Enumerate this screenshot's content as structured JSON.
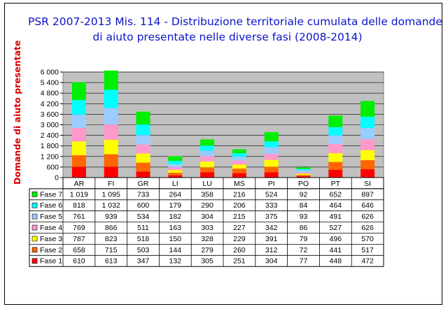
{
  "title_line1": "PSR 2007-2013 Mis. 114 - Distribuzione territoriale cumulata delle domande",
  "title_line2": "di aiuto presentate nelle diverse fasi (2008-2014)",
  "chart_data": {
    "type": "bar",
    "stacked": true,
    "title": "PSR 2007-2013 Mis. 114 - Distribuzione territoriale cumulata delle domande di aiuto presentate nelle diverse fasi (2008-2014)",
    "ylabel": "Domande di aiuto presentate",
    "xlabel": "",
    "ylim": [
      0,
      6000
    ],
    "yticks": [
      "0",
      "600",
      "1 200",
      "1 800",
      "2 400",
      "3 000",
      "3 600",
      "4 200",
      "4 800",
      "5 400",
      "6 000"
    ],
    "grid": true,
    "legend": "data-table-left",
    "categories": [
      "AR",
      "FI",
      "GR",
      "LI",
      "LU",
      "MS",
      "PI",
      "PO",
      "PT",
      "SI"
    ],
    "series": [
      {
        "name": "Fase 1",
        "color": "#ff0000",
        "values": [
          610,
          613,
          347,
          132,
          305,
          251,
          304,
          77,
          448,
          472
        ]
      },
      {
        "name": "Fase 2",
        "color": "#ff6600",
        "values": [
          658,
          715,
          503,
          144,
          279,
          260,
          312,
          72,
          441,
          517
        ]
      },
      {
        "name": "Fase 3",
        "color": "#ffff00",
        "values": [
          787,
          823,
          518,
          150,
          328,
          229,
          391,
          79,
          496,
          570
        ]
      },
      {
        "name": "Fase 4",
        "color": "#ff99cc",
        "values": [
          769,
          866,
          511,
          163,
          303,
          227,
          342,
          86,
          527,
          626
        ]
      },
      {
        "name": "Fase 5",
        "color": "#99ccff",
        "values": [
          761,
          939,
          534,
          182,
          304,
          215,
          375,
          93,
          491,
          626
        ]
      },
      {
        "name": "Fase 6",
        "color": "#00ffff",
        "values": [
          818,
          1032,
          600,
          179,
          290,
          206,
          333,
          84,
          464,
          646
        ]
      },
      {
        "name": "Fase 7",
        "color": "#00ee00",
        "values": [
          1019,
          1095,
          733,
          264,
          358,
          216,
          524,
          92,
          652,
          897
        ]
      }
    ],
    "table_values": {
      "Fase 1": [
        "610",
        "613",
        "347",
        "132",
        "305",
        "251",
        "304",
        "77",
        "448",
        "472"
      ],
      "Fase 2": [
        "658",
        "715",
        "503",
        "144",
        "279",
        "260",
        "312",
        "72",
        "441",
        "517"
      ],
      "Fase 3": [
        "787",
        "823",
        "518",
        "150",
        "328",
        "229",
        "391",
        "79",
        "496",
        "570"
      ],
      "Fase 4": [
        "769",
        "866",
        "511",
        "163",
        "303",
        "227",
        "342",
        "86",
        "527",
        "626"
      ],
      "Fase 5": [
        "761",
        "939",
        "534",
        "182",
        "304",
        "215",
        "375",
        "93",
        "491",
        "626"
      ],
      "Fase 6": [
        "818",
        "1 032",
        "600",
        "179",
        "290",
        "206",
        "333",
        "84",
        "464",
        "646"
      ],
      "Fase 7": [
        "1 019",
        "1 095",
        "733",
        "264",
        "358",
        "216",
        "524",
        "92",
        "652",
        "897"
      ]
    }
  }
}
